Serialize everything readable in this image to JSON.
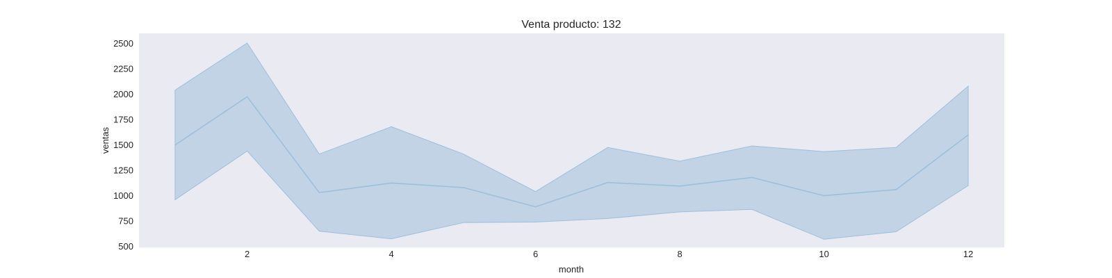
{
  "chart_data": {
    "type": "line",
    "title": "Venta producto: 132",
    "xlabel": "month",
    "ylabel": "ventas",
    "xlim": [
      0.5,
      12.5
    ],
    "ylim": [
      490,
      2600
    ],
    "x_ticks": [
      2,
      4,
      6,
      8,
      10,
      12
    ],
    "y_ticks": [
      500,
      750,
      1000,
      1250,
      1500,
      1750,
      2000,
      2250,
      2500
    ],
    "grid": false,
    "background_color": "#eaeaf2",
    "series": [
      {
        "color": "#9dbfdc",
        "fill_color": "#c2d3e5",
        "x": [
          1,
          2,
          3,
          4,
          5,
          6,
          7,
          8,
          9,
          10,
          11,
          12
        ],
        "values": [
          1500,
          1975,
          1030,
          1125,
          1080,
          890,
          1130,
          1095,
          1180,
          1000,
          1060,
          1600
        ],
        "upper": [
          2040,
          2505,
          1410,
          1680,
          1410,
          1040,
          1475,
          1340,
          1490,
          1435,
          1475,
          2080
        ],
        "lower": [
          960,
          1440,
          650,
          575,
          735,
          740,
          775,
          840,
          865,
          570,
          645,
          1100
        ]
      }
    ]
  }
}
